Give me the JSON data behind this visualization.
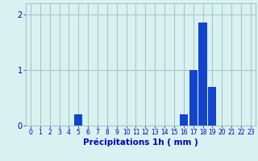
{
  "hours": [
    0,
    1,
    2,
    3,
    4,
    5,
    6,
    7,
    8,
    9,
    10,
    11,
    12,
    13,
    14,
    15,
    16,
    17,
    18,
    19,
    20,
    21,
    22,
    23
  ],
  "values": [
    0.0,
    0.0,
    0.0,
    0.0,
    0.0,
    0.2,
    0.0,
    0.0,
    0.0,
    0.0,
    0.0,
    0.0,
    0.0,
    0.0,
    0.0,
    0.0,
    0.2,
    1.0,
    1.85,
    0.7,
    0.0,
    0.0,
    0.0,
    0.0
  ],
  "bar_color": "#1444cc",
  "background_color": "#d8f2f2",
  "grid_color": "#aac8c8",
  "axis_color": "#0000bb",
  "xlabel": "Précipitations 1h ( mm )",
  "xlim": [
    -0.5,
    23.5
  ],
  "ylim": [
    0,
    2.2
  ],
  "yticks": [
    0,
    1,
    2
  ],
  "xtick_labels": [
    "0",
    "1",
    "2",
    "3",
    "4",
    "5",
    "6",
    "7",
    "8",
    "9",
    "10",
    "11",
    "12",
    "13",
    "14",
    "15",
    "16",
    "17",
    "18",
    "19",
    "20",
    "21",
    "22",
    "23"
  ],
  "tick_fontsize": 5.5,
  "label_fontsize": 7.5,
  "bar_width": 0.85
}
